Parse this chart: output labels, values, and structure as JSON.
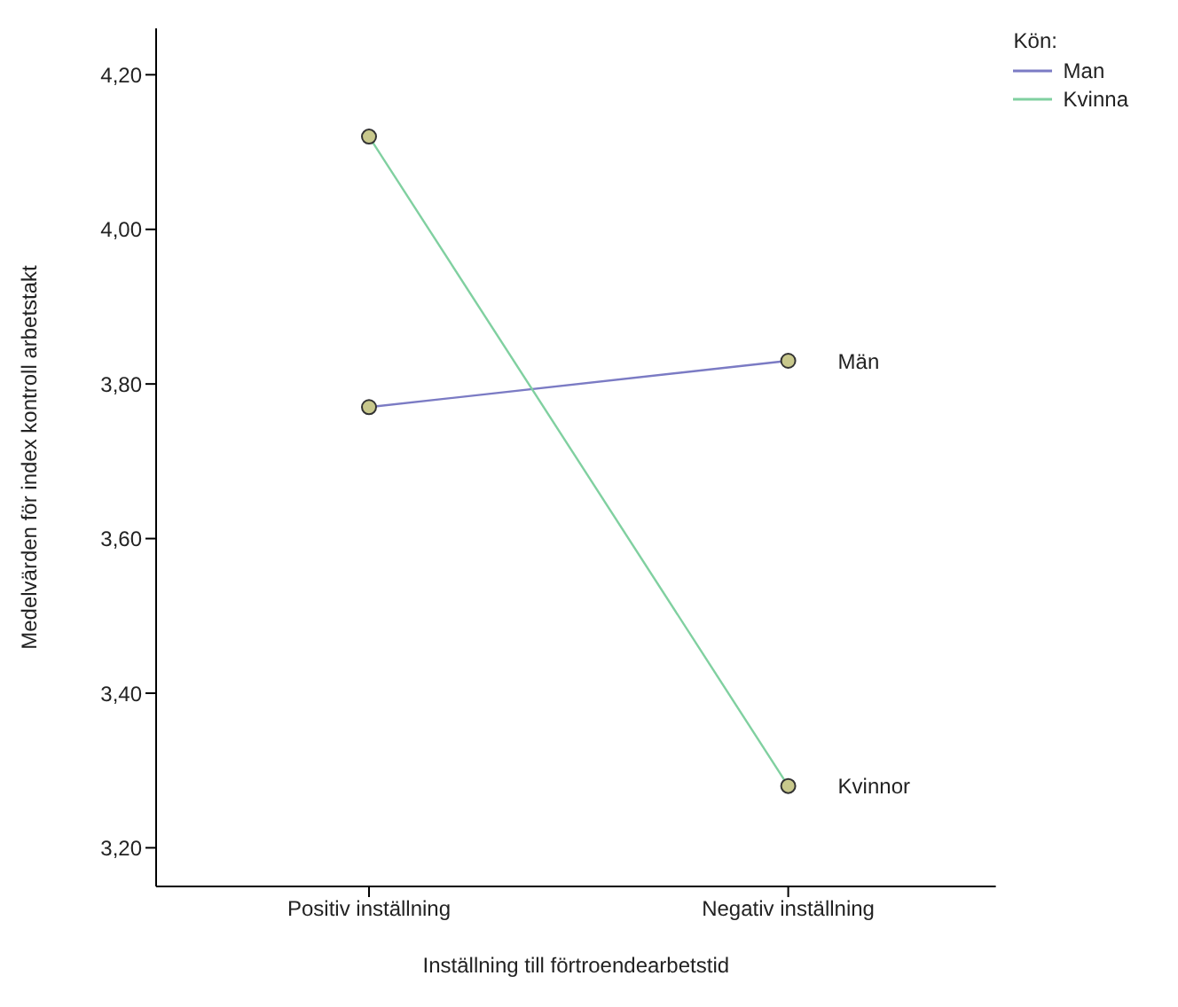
{
  "chart_data": {
    "type": "line",
    "xlabel": "Inställning till förtroendearbetstid",
    "ylabel": "Medelvärden för index kontroll arbetstakt",
    "legend_title": "Kön:",
    "categories": [
      "Positiv inställning",
      "Negativ inställning"
    ],
    "series": [
      {
        "name": "Man",
        "color": "#7b7bc4",
        "values": [
          3.77,
          3.83
        ]
      },
      {
        "name": "Kvinna",
        "color": "#80d0a0",
        "values": [
          4.12,
          3.28
        ]
      }
    ],
    "ylim": [
      3.15,
      4.26
    ],
    "yticks": [
      {
        "value": 3.2,
        "label": "3,20"
      },
      {
        "value": 3.4,
        "label": "3,40"
      },
      {
        "value": 3.6,
        "label": "3,60"
      },
      {
        "value": 3.8,
        "label": "3,80"
      },
      {
        "value": 4.0,
        "label": "4,00"
      },
      {
        "value": 4.2,
        "label": "4,20"
      }
    ],
    "annotations": [
      {
        "text": "Män",
        "x": "Negativ inställning",
        "y": 3.83
      },
      {
        "text": "Kvinnor",
        "x": "Negativ inställning",
        "y": 3.28
      }
    ],
    "marker": "circle",
    "legend": "top right",
    "grid": false
  }
}
